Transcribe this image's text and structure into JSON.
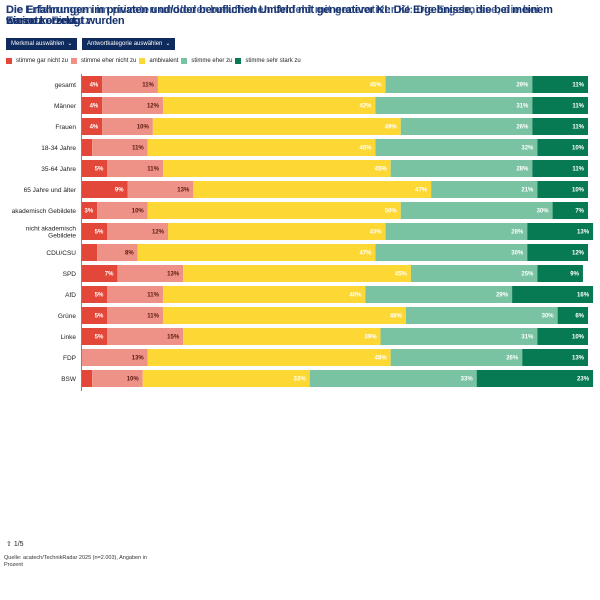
{
  "header": {
    "title_layer_a": "Die Erfahrungen im privaten und/oder beruflichen Umfeld mit generativer KI: Die Ergebnisse, die bei meinem Einsatz erzeugt wurden",
    "title_layer_b": "Die Erfahrungen im privaten und/oder beruflichen Umfeld mit generativer KI: Die Ergebnisse, die bei meinem Einsatz",
    "title_line2": "waren korrekt."
  },
  "controls": {
    "feature_select_label": "Merkmal auswählen",
    "category_select_label": "Antwortkategorie auswählen",
    "chevron_icon": "chevron-down-icon"
  },
  "colors": {
    "stimme_gar_nicht_zu": "#e2473a",
    "stimme_eher_nicht_zu": "#ee9186",
    "ambivalent": "#fdd835",
    "stimme_eher_zu": "#79c3a2",
    "stimme_sehr_stark_zu": "#087a53"
  },
  "chart_data": {
    "type": "bar",
    "orientation": "horizontal",
    "stacked": true,
    "unit": "%",
    "title": "Die Erfahrungen im privaten und/oder beruflichen Umfeld mit generativer KI: Die Ergebnisse, die bei meinem Einsatz erzeugt wurden, waren korrekt.",
    "xlabel": "",
    "ylabel": "",
    "xlim": [
      0,
      100
    ],
    "legend_position": "top-left",
    "categories": [
      "gesamt",
      "Männer",
      "Frauen",
      "18-34 Jahre",
      "35-64 Jahre",
      "65 Jahre und älter",
      "akademisch Gebildete",
      "nicht akademisch Gebildete",
      "CDU/CSU",
      "SPD",
      "AfD",
      "Grüne",
      "Linke",
      "FDP",
      "BSW"
    ],
    "series": [
      {
        "name": "stimme gar nicht zu",
        "values": [
          4,
          4,
          4,
          2,
          5,
          9,
          3,
          5,
          3,
          7,
          5,
          5,
          5,
          0,
          2
        ],
        "labels": [
          "4%",
          "4%",
          "4%",
          "",
          "5%",
          "9%",
          "3%",
          "5%",
          "",
          "7%",
          "5%",
          "5%",
          "5%",
          "",
          ""
        ]
      },
      {
        "name": "stimme eher nicht zu",
        "values": [
          11,
          12,
          10,
          11,
          11,
          13,
          10,
          12,
          8,
          13,
          11,
          11,
          15,
          13,
          10
        ],
        "labels": [
          "11%",
          "12%",
          "10%",
          "11%",
          "11%",
          "13%",
          "10%",
          "12%",
          "8%",
          "13%",
          "11%",
          "11%",
          "15%",
          "13%",
          "10%"
        ]
      },
      {
        "name": "ambivalent",
        "values": [
          45,
          42,
          49,
          45,
          45,
          47,
          50,
          43,
          47,
          45,
          40,
          48,
          39,
          48,
          33
        ],
        "labels": [
          "45%",
          "42%",
          "49%",
          "45%",
          "45%",
          "47%",
          "50%",
          "43%",
          "47%",
          "45%",
          "40%",
          "48%",
          "39%",
          "48%",
          "33%"
        ]
      },
      {
        "name": "stimme eher zu",
        "values": [
          29,
          31,
          26,
          32,
          28,
          21,
          30,
          28,
          30,
          25,
          29,
          30,
          31,
          26,
          33
        ],
        "labels": [
          "29%",
          "31%",
          "26%",
          "32%",
          "28%",
          "21%",
          "30%",
          "28%",
          "30%",
          "25%",
          "29%",
          "30%",
          "31%",
          "26%",
          "33%"
        ]
      },
      {
        "name": "stimme sehr stark zu",
        "values": [
          11,
          11,
          11,
          10,
          11,
          10,
          7,
          13,
          12,
          9,
          16,
          6,
          10,
          13,
          23
        ],
        "labels": [
          "11%",
          "11%",
          "11%",
          "10%",
          "11%",
          "10%",
          "7%",
          "13%",
          "12%",
          "9%",
          "16%",
          "6%",
          "10%",
          "13%",
          "23%"
        ]
      }
    ]
  },
  "legend": [
    {
      "label": "stimme gar nicht zu",
      "color_key": "stimme_gar_nicht_zu"
    },
    {
      "label": "stimme eher nicht zu",
      "color_key": "stimme_eher_nicht_zu"
    },
    {
      "label": "ambivalent",
      "color_key": "ambivalent"
    },
    {
      "label": "stimme eher zu",
      "color_key": "stimme_eher_zu"
    },
    {
      "label": "stimme sehr stark zu",
      "color_key": "stimme_sehr_stark_zu"
    }
  ],
  "footer": {
    "pager_icon": "share-icon",
    "page_indicator": "1/5",
    "source": "Quelle: acatech/TechnikRadar 2025 (n=2.003), Angaben in",
    "source_line2": "Prozent"
  }
}
